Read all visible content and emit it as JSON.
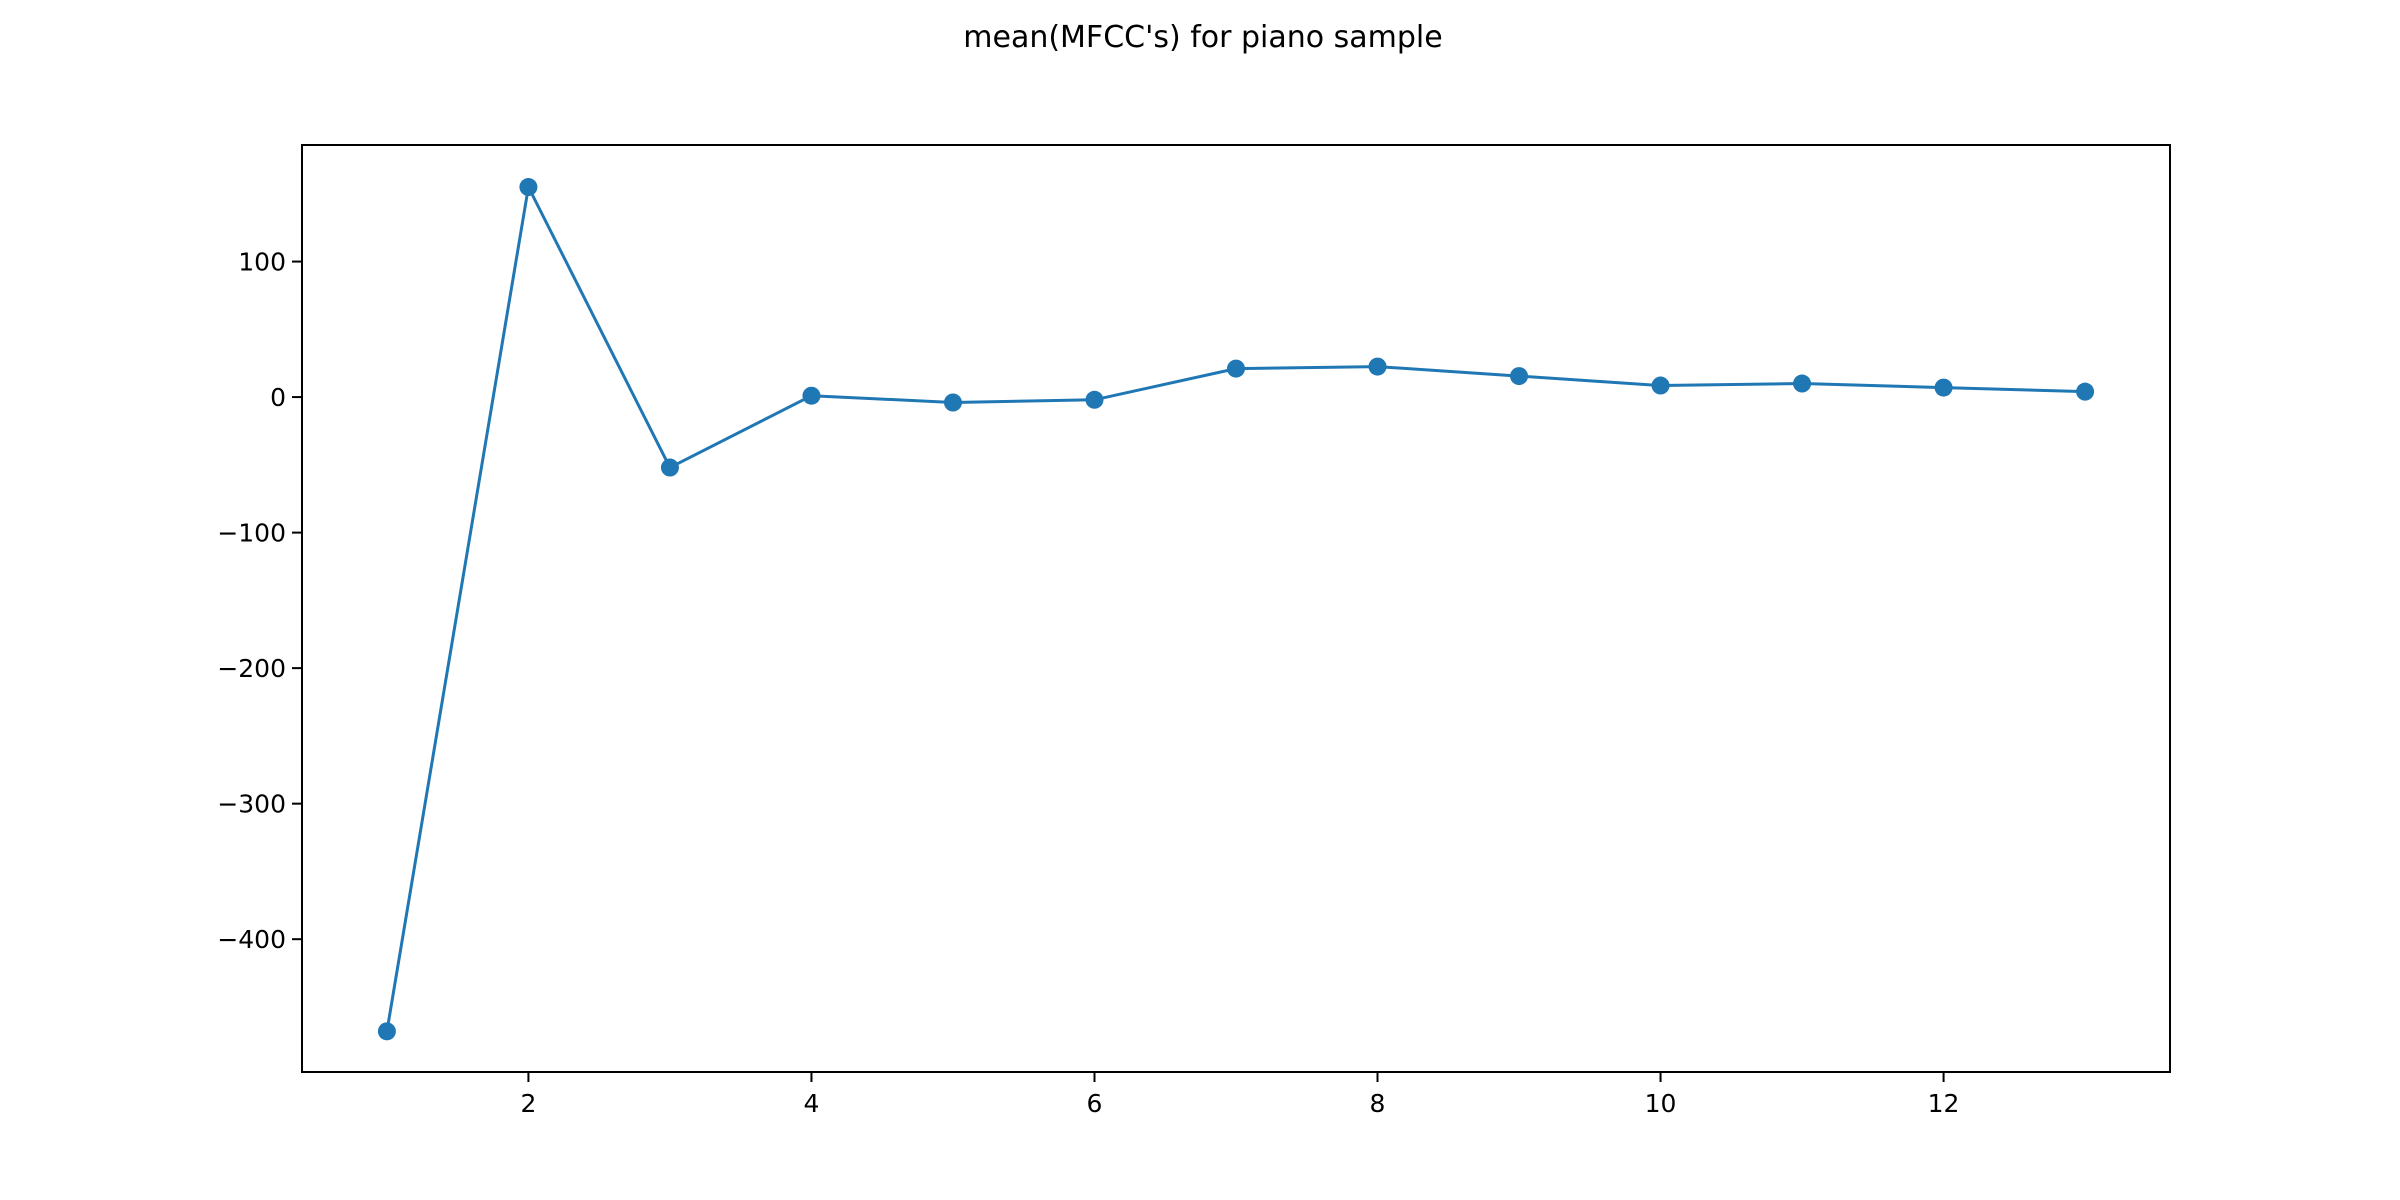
{
  "chart_data": {
    "type": "line",
    "title": "mean(MFCC's) for piano sample",
    "xlabel": "",
    "ylabel": "",
    "x": [
      1,
      2,
      3,
      4,
      5,
      6,
      7,
      8,
      9,
      10,
      11,
      12,
      13
    ],
    "series": [
      {
        "values": [
          -468,
          155,
          -52,
          1,
          -4,
          -2,
          21,
          22.5,
          15.5,
          8.5,
          10,
          7,
          4
        ],
        "color": "#1f77b4",
        "marker": "circle"
      }
    ],
    "xlim": [
      0.4,
      13.6
    ],
    "ylim": [
      -498,
      186
    ],
    "xticks": [
      2,
      4,
      6,
      8,
      10,
      12
    ],
    "yticks": [
      -400,
      -300,
      -200,
      -100,
      0,
      100
    ],
    "xtick_labels": [
      "2",
      "4",
      "6",
      "8",
      "10",
      "12"
    ],
    "ytick_labels": [
      "−400",
      "−300",
      "−200",
      "−100",
      "0",
      "100"
    ],
    "grid": false,
    "legend": "none"
  }
}
